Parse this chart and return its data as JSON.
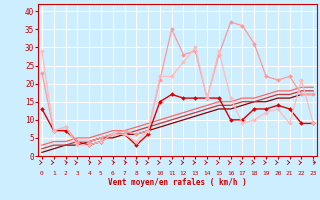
{
  "xlabel": "Vent moyen/en rafales ( km/h )",
  "background_color": "#cceeff",
  "grid_color": "#ffffff",
  "x_ticks": [
    0,
    1,
    2,
    3,
    4,
    5,
    6,
    7,
    8,
    9,
    10,
    11,
    12,
    13,
    14,
    15,
    16,
    17,
    18,
    19,
    20,
    21,
    22,
    23
  ],
  "ylim": [
    0,
    42
  ],
  "xlim": [
    -0.3,
    23.3
  ],
  "yticks": [
    0,
    5,
    10,
    15,
    20,
    25,
    30,
    35,
    40
  ],
  "series": [
    {
      "x": [
        0,
        1,
        2,
        3,
        4,
        5,
        6,
        7,
        8,
        9,
        10,
        11,
        12,
        13,
        14,
        15,
        16,
        17,
        18,
        19,
        20,
        21,
        22,
        23
      ],
      "y": [
        13,
        7,
        7,
        4,
        3,
        4,
        6,
        6,
        3,
        6,
        15,
        17,
        16,
        16,
        16,
        16,
        10,
        10,
        13,
        13,
        14,
        13,
        9,
        9
      ],
      "color": "#dd0000",
      "marker": "D",
      "markersize": 2,
      "linewidth": 1.0
    },
    {
      "x": [
        0,
        1,
        2,
        3,
        4,
        5,
        6,
        7,
        8,
        9,
        10,
        11,
        12,
        13,
        14,
        15,
        16,
        17,
        18,
        19,
        20,
        21,
        22,
        23
      ],
      "y": [
        23,
        7,
        8,
        4,
        4,
        5,
        6,
        7,
        6,
        7,
        21,
        35,
        28,
        29,
        16,
        28,
        37,
        36,
        31,
        22,
        21,
        22,
        17,
        17
      ],
      "color": "#ff9999",
      "marker": "D",
      "markersize": 2,
      "linewidth": 0.9
    },
    {
      "x": [
        0,
        1,
        2,
        3,
        4,
        5,
        6,
        7,
        8,
        9,
        10,
        11,
        12,
        13,
        14,
        15,
        16,
        17,
        18,
        19,
        20,
        21,
        22,
        23
      ],
      "y": [
        29,
        7,
        8,
        3,
        3,
        4,
        6,
        6,
        4,
        7,
        22,
        22,
        26,
        30,
        16,
        29,
        16,
        9,
        10,
        12,
        13,
        9,
        21,
        9
      ],
      "color": "#ffbbbb",
      "marker": "D",
      "markersize": 2,
      "linewidth": 0.9
    },
    {
      "x": [
        0,
        1,
        2,
        3,
        4,
        5,
        6,
        7,
        8,
        9,
        10,
        11,
        12,
        13,
        14,
        15,
        16,
        17,
        18,
        19,
        20,
        21,
        22,
        23
      ],
      "y": [
        1,
        2,
        3,
        3,
        4,
        5,
        5,
        6,
        6,
        7,
        8,
        9,
        10,
        11,
        12,
        13,
        13,
        14,
        15,
        15,
        16,
        16,
        17,
        17
      ],
      "color": "#880000",
      "marker": null,
      "linewidth": 0.9
    },
    {
      "x": [
        0,
        1,
        2,
        3,
        4,
        5,
        6,
        7,
        8,
        9,
        10,
        11,
        12,
        13,
        14,
        15,
        16,
        17,
        18,
        19,
        20,
        21,
        22,
        23
      ],
      "y": [
        2,
        3,
        3,
        4,
        4,
        5,
        6,
        6,
        7,
        8,
        9,
        10,
        11,
        12,
        13,
        14,
        14,
        15,
        15,
        16,
        17,
        17,
        18,
        18
      ],
      "color": "#cc3333",
      "marker": null,
      "linewidth": 0.9
    },
    {
      "x": [
        0,
        1,
        2,
        3,
        4,
        5,
        6,
        7,
        8,
        9,
        10,
        11,
        12,
        13,
        14,
        15,
        16,
        17,
        18,
        19,
        20,
        21,
        22,
        23
      ],
      "y": [
        3,
        4,
        4,
        5,
        5,
        6,
        7,
        7,
        8,
        9,
        10,
        11,
        12,
        13,
        14,
        15,
        15,
        16,
        16,
        17,
        18,
        18,
        19,
        19
      ],
      "color": "#ff6666",
      "marker": null,
      "linewidth": 0.9
    }
  ],
  "wind_arrow_angles": [
    90,
    90,
    135,
    110,
    135,
    70,
    135,
    130,
    135,
    90,
    90,
    90,
    90,
    90,
    90,
    90,
    110,
    110,
    70,
    90,
    90,
    90,
    110,
    120
  ]
}
